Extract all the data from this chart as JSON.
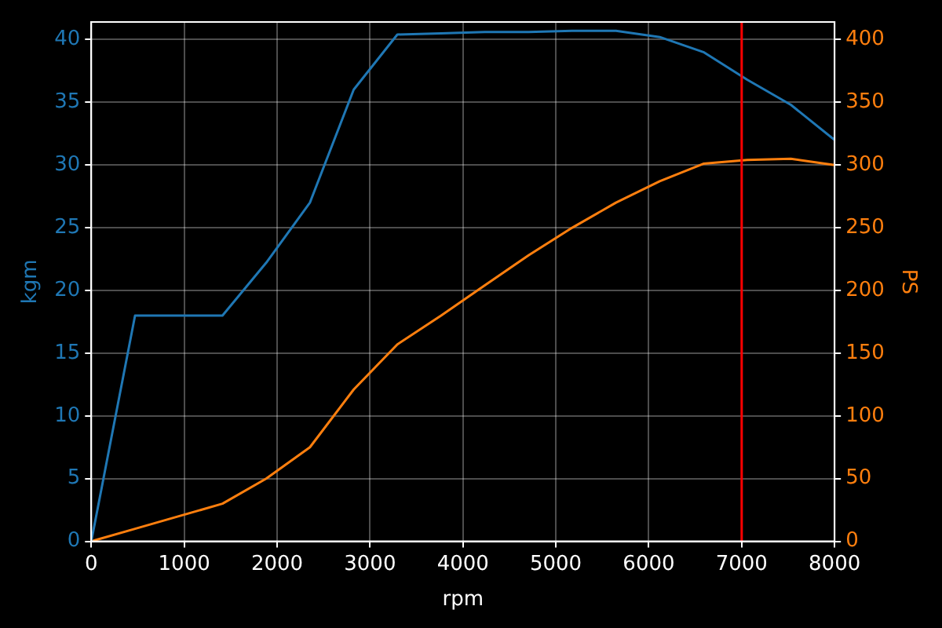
{
  "chart_data": {
    "type": "line",
    "xlabel": "rpm",
    "ylabel": "kgm",
    "y2label": "PS",
    "x": [
      0,
      471,
      941,
      1412,
      1882,
      2353,
      2824,
      3294,
      3765,
      4235,
      4706,
      5176,
      5647,
      6118,
      6588,
      7059,
      7529,
      8000
    ],
    "series": [
      {
        "color": "#1f77b4",
        "values": [
          0,
          18,
          18,
          18,
          22.2,
          27,
          36,
          40.4,
          40.5,
          40.6,
          40.6,
          40.7,
          40.7,
          40.2,
          39,
          36.8,
          34.8,
          32
        ]
      },
      {
        "color": "#ff7f0e",
        "axis": "y2",
        "values": [
          0,
          10,
          20,
          30,
          50,
          75,
          121,
          157,
          180,
          204,
          228,
          250,
          270,
          287,
          301,
          304,
          305,
          300
        ]
      }
    ],
    "xlim": [
      0,
      8000
    ],
    "xticks": [
      0,
      1000,
      2000,
      3000,
      4000,
      5000,
      6000,
      7000,
      8000
    ],
    "ylim": [
      0,
      41.4
    ],
    "yticks": [
      0,
      5,
      10,
      15,
      20,
      25,
      30,
      35,
      40
    ],
    "y2lim": [
      0,
      414
    ],
    "y2ticks": [
      0,
      50,
      100,
      150,
      200,
      250,
      300,
      350,
      400
    ],
    "ref_lines": [
      {
        "axis": "x",
        "value": 7000,
        "color": "#ff0000"
      }
    ],
    "grid": true
  }
}
